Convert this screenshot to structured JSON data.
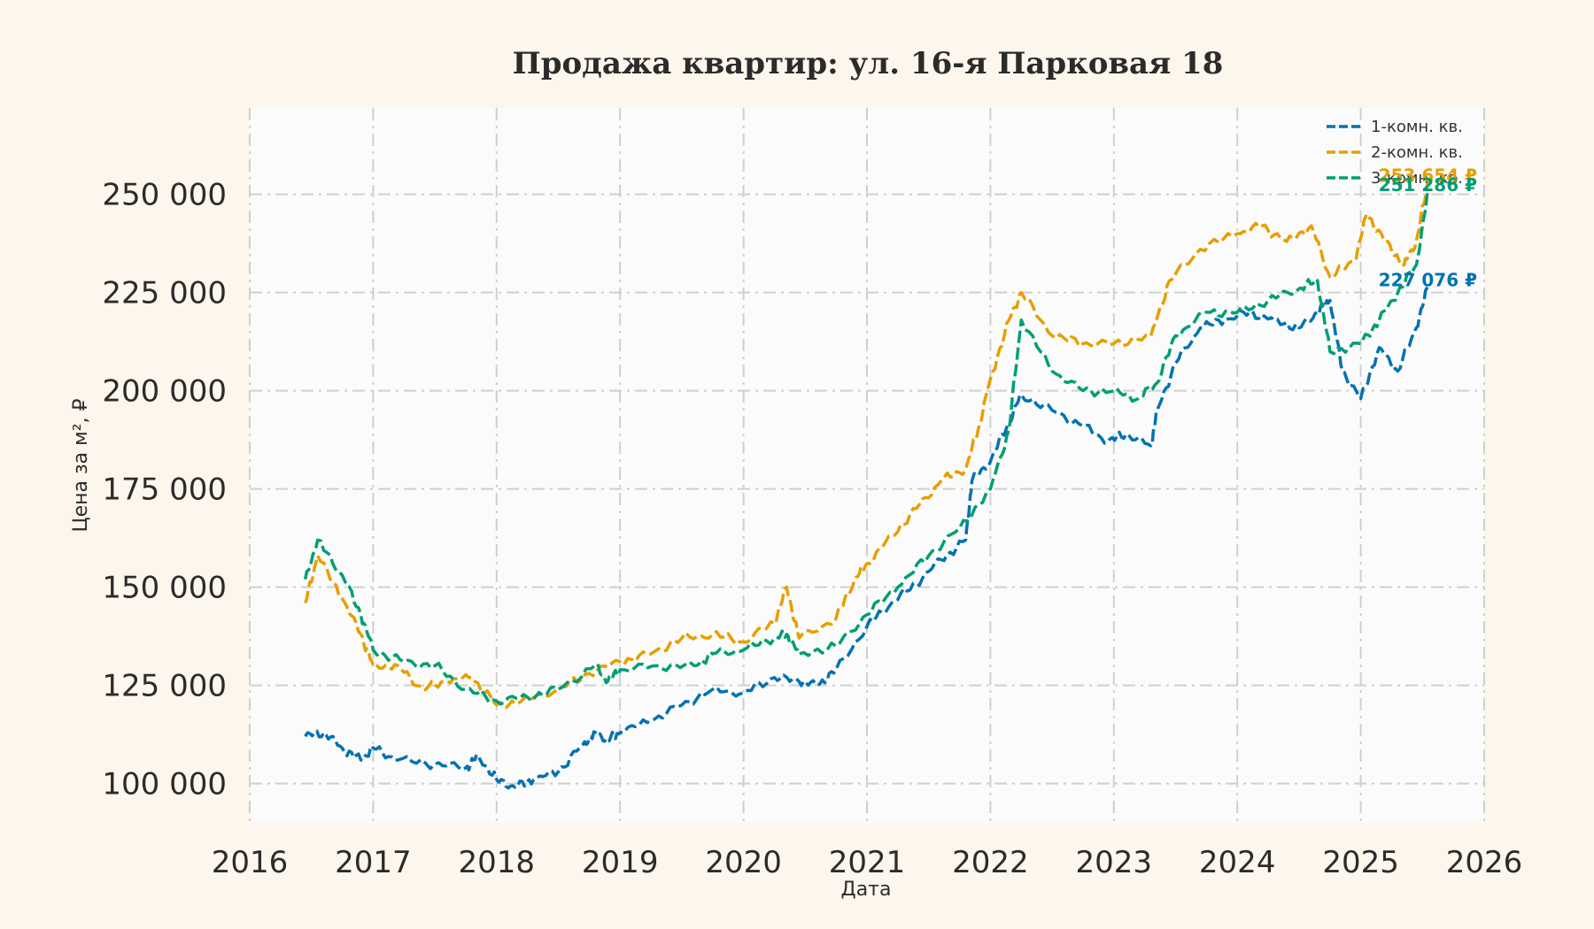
{
  "chart_data": {
    "type": "line",
    "title": "Продажа квартир: ул. 16-я Парковая 18",
    "xlabel": "Дата",
    "ylabel": "Цена за м², ₽",
    "xlim": [
      2016,
      2026
    ],
    "ylim": [
      90000,
      272000
    ],
    "x_ticks": [
      2016,
      2017,
      2018,
      2019,
      2020,
      2021,
      2022,
      2023,
      2024,
      2025,
      2026
    ],
    "x_tick_labels": [
      "2016",
      "2017",
      "2018",
      "2019",
      "2020",
      "2021",
      "2022",
      "2023",
      "2024",
      "2025",
      "2026"
    ],
    "y_ticks": [
      100000,
      125000,
      150000,
      175000,
      200000,
      225000,
      250000
    ],
    "y_tick_labels": [
      "100 000",
      "125 000",
      "150 000",
      "175 000",
      "200 000",
      "225 000",
      "250 000"
    ],
    "grid": true,
    "legend_position": "top-right",
    "series": [
      {
        "name": "1-комн. кв.",
        "color": "#0072b2",
        "end_label": "227 076 ₽",
        "x": [
          2016.45,
          2016.6,
          2016.75,
          2016.9,
          2017.0,
          2017.2,
          2017.5,
          2017.75,
          2017.85,
          2018.0,
          2018.15,
          2018.3,
          2018.5,
          2018.7,
          2018.8,
          2018.9,
          2019.0,
          2019.25,
          2019.5,
          2019.75,
          2020.0,
          2020.25,
          2020.45,
          2020.6,
          2020.75,
          2021.0,
          2021.2,
          2021.4,
          2021.6,
          2021.8,
          2021.85,
          2022.0,
          2022.15,
          2022.25,
          2022.5,
          2022.75,
          2022.95,
          2023.1,
          2023.3,
          2023.35,
          2023.5,
          2023.7,
          2023.9,
          2024.1,
          2024.3,
          2024.5,
          2024.65,
          2024.75,
          2024.85,
          2025.0,
          2025.15,
          2025.3,
          2025.45,
          2025.55
        ],
        "values": [
          112000,
          113000,
          109000,
          106000,
          109000,
          106000,
          105000,
          104000,
          107000,
          101000,
          99000,
          101000,
          103000,
          110000,
          113000,
          111000,
          113000,
          116000,
          120000,
          124000,
          123000,
          127000,
          126000,
          125000,
          129000,
          140000,
          146000,
          151000,
          157000,
          162000,
          177000,
          182000,
          192000,
          199000,
          195000,
          191000,
          187000,
          189000,
          186000,
          195000,
          207000,
          216000,
          218000,
          220000,
          218000,
          216000,
          220000,
          223000,
          205000,
          198000,
          211000,
          205000,
          216000,
          227076
        ]
      },
      {
        "name": "2-комн. кв.",
        "color": "#e69f00",
        "end_label": "253 654 ₽",
        "x": [
          2016.45,
          2016.55,
          2016.75,
          2016.9,
          2017.0,
          2017.2,
          2017.4,
          2017.6,
          2017.8,
          2018.0,
          2018.2,
          2018.5,
          2018.75,
          2019.0,
          2019.25,
          2019.5,
          2019.75,
          2020.0,
          2020.25,
          2020.35,
          2020.45,
          2020.75,
          2020.9,
          2021.0,
          2021.2,
          2021.4,
          2021.6,
          2021.8,
          2021.9,
          2022.0,
          2022.15,
          2022.25,
          2022.5,
          2022.75,
          2023.0,
          2023.3,
          2023.45,
          2023.7,
          2024.0,
          2024.2,
          2024.4,
          2024.6,
          2024.75,
          2024.95,
          2025.05,
          2025.2,
          2025.35,
          2025.45,
          2025.55
        ],
        "values": [
          146000,
          158000,
          147000,
          138000,
          130000,
          130000,
          124000,
          126000,
          127000,
          120000,
          121000,
          124000,
          128000,
          131000,
          133000,
          137000,
          138000,
          136000,
          141000,
          150000,
          137000,
          142000,
          152000,
          156000,
          163000,
          170000,
          177000,
          180000,
          190000,
          203000,
          218000,
          225000,
          214000,
          212000,
          212000,
          214000,
          228000,
          236000,
          240000,
          242000,
          238000,
          242000,
          229000,
          233000,
          245000,
          238000,
          232000,
          238000,
          253654
        ]
      },
      {
        "name": "3-комн. кв.",
        "color": "#009e73",
        "end_label": "251 286 ₽",
        "x": [
          2016.45,
          2016.55,
          2016.75,
          2016.9,
          2017.0,
          2017.25,
          2017.5,
          2017.75,
          2018.0,
          2018.25,
          2018.5,
          2018.8,
          2018.9,
          2019.0,
          2019.3,
          2019.6,
          2019.75,
          2020.0,
          2020.25,
          2020.35,
          2020.45,
          2020.75,
          2021.0,
          2021.25,
          2021.5,
          2021.75,
          2022.0,
          2022.15,
          2022.25,
          2022.5,
          2022.75,
          2023.0,
          2023.2,
          2023.35,
          2023.5,
          2023.75,
          2024.0,
          2024.25,
          2024.5,
          2024.65,
          2024.75,
          2025.0,
          2025.15,
          2025.3,
          2025.45,
          2025.55
        ],
        "values": [
          152000,
          162000,
          153000,
          143000,
          134000,
          131000,
          130000,
          124000,
          121000,
          122000,
          124000,
          130000,
          126000,
          129000,
          130000,
          130000,
          133000,
          134000,
          137000,
          138000,
          133000,
          135000,
          143000,
          150000,
          158000,
          165000,
          175000,
          190000,
          218000,
          205000,
          200000,
          200000,
          198000,
          202000,
          214000,
          220000,
          220000,
          223000,
          226000,
          228000,
          210000,
          212000,
          218000,
          225000,
          232000,
          251286
        ]
      }
    ]
  }
}
